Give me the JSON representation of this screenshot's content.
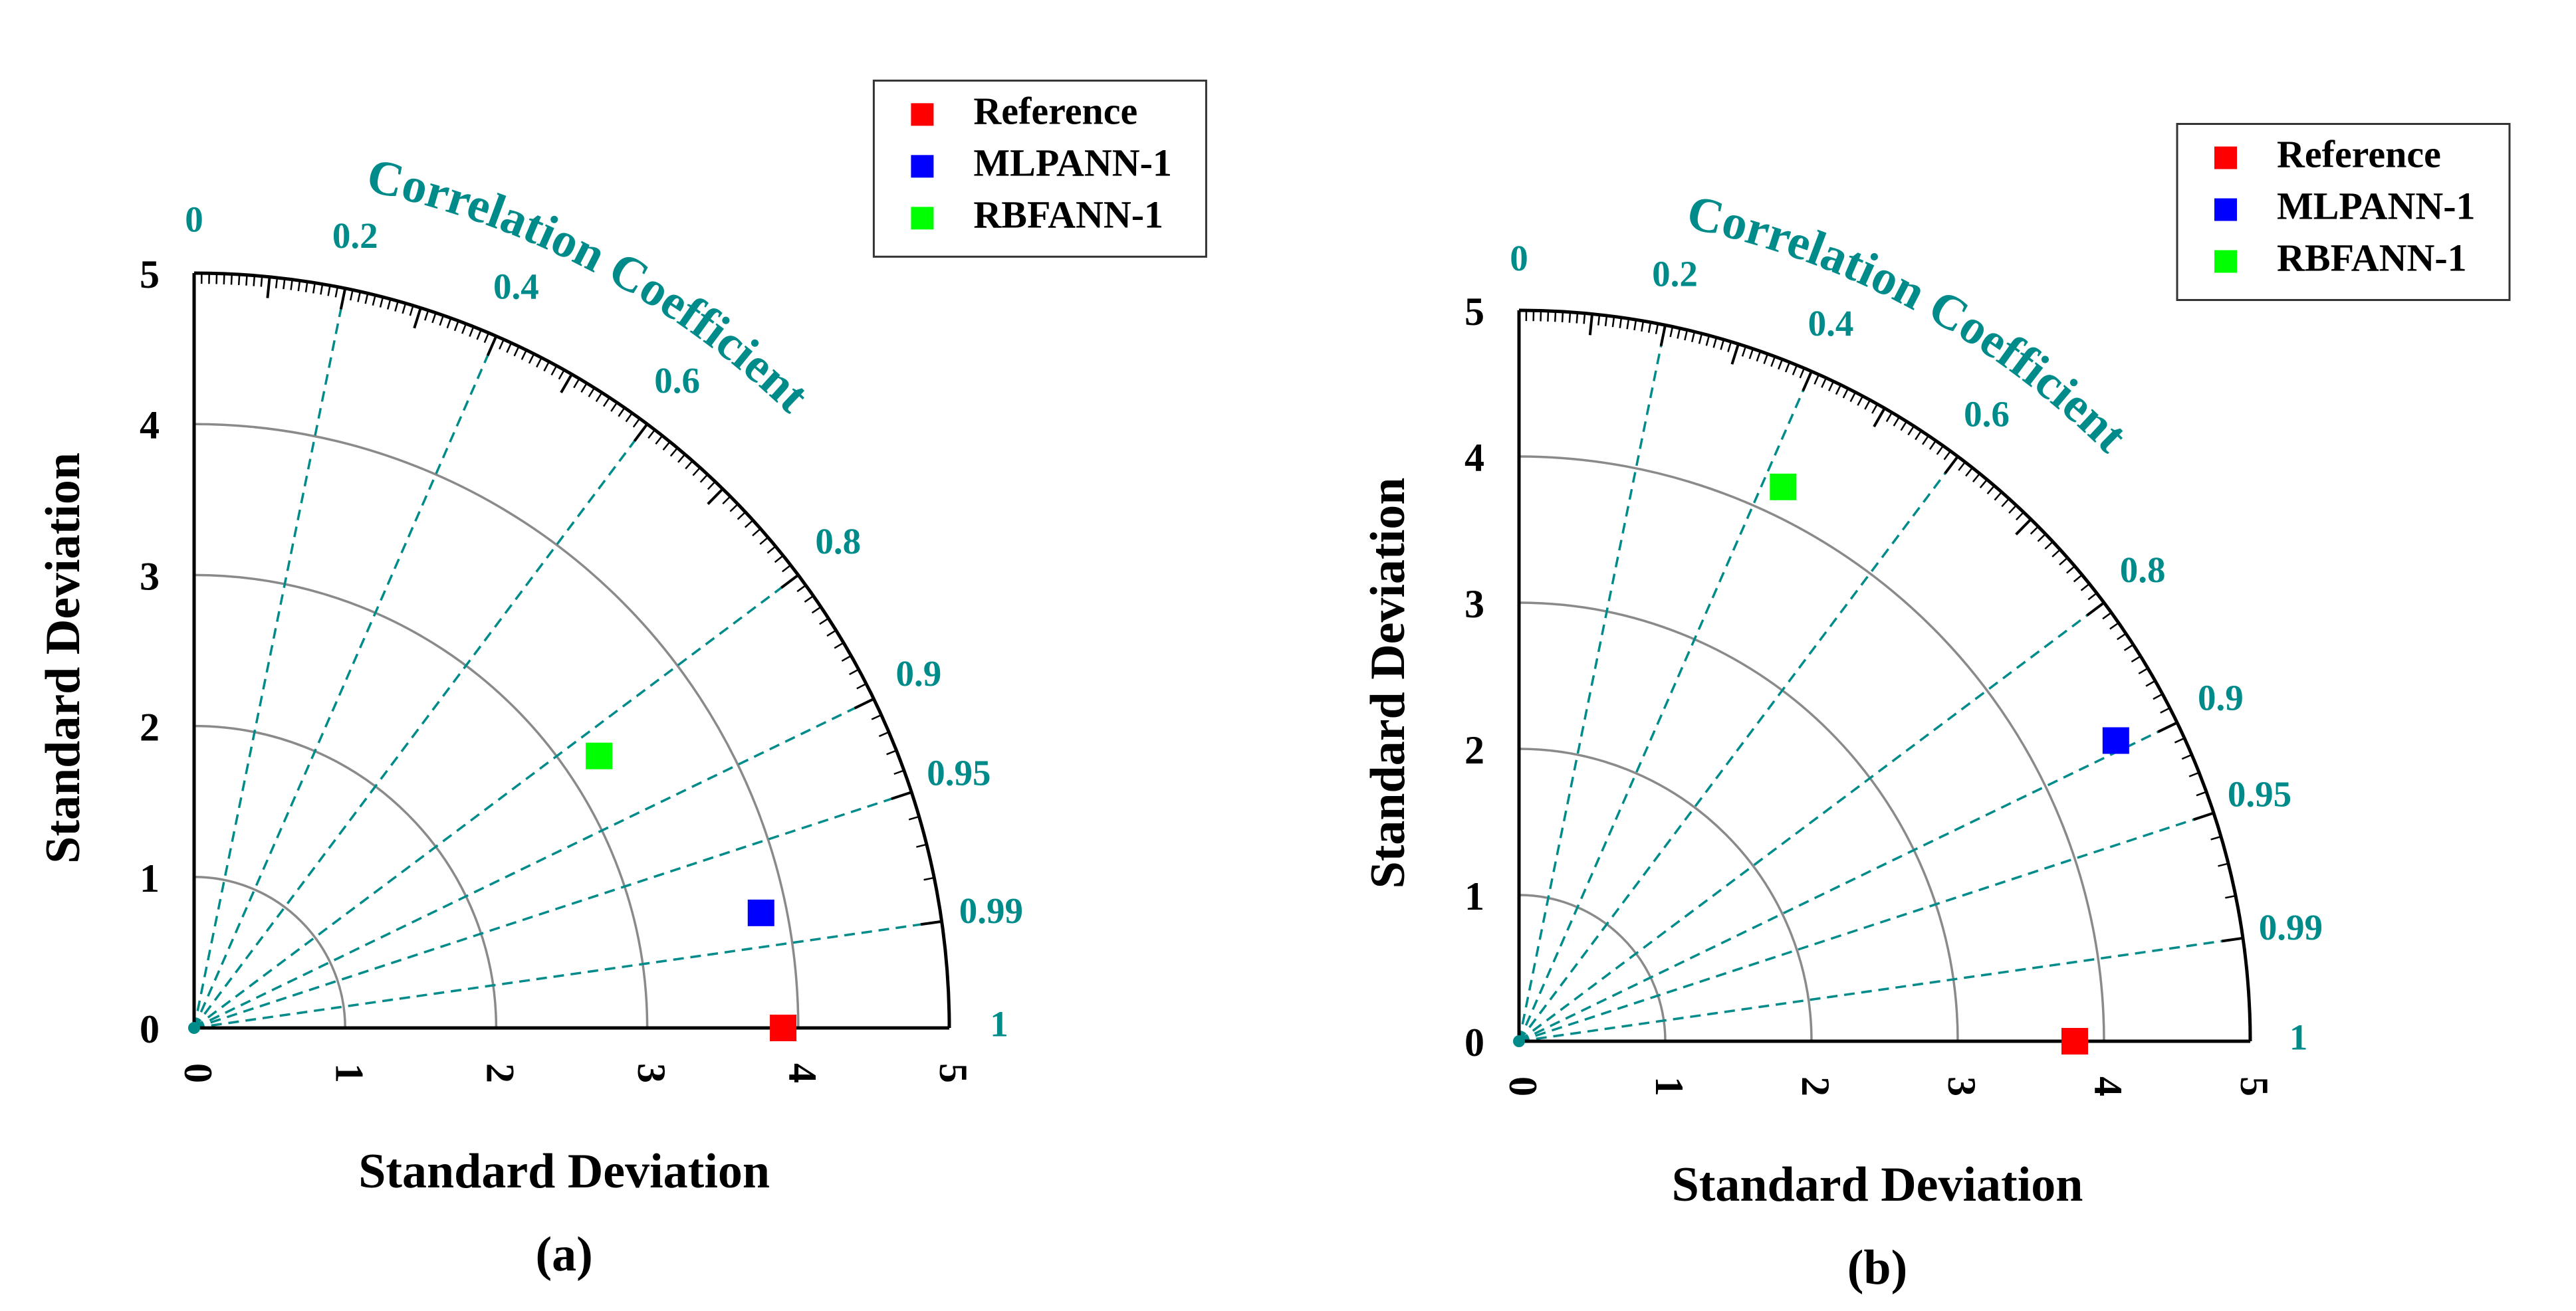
{
  "colors": {
    "correlation": "#008b8b",
    "std_arc": "#8a8a8a",
    "axis": "#000000",
    "reference": "#ff0000",
    "mlpann": "#0000ff",
    "rbfann": "#00ff00"
  },
  "chart_data": [
    {
      "type": "taylor",
      "panel_label": "(a)",
      "xlabel": "Standard Deviation",
      "ylabel": "Standard Deviation",
      "correlation_label": "Correlation Coefficient",
      "std_range": [
        0,
        5
      ],
      "std_ticks": [
        "0",
        "1",
        "2",
        "3",
        "4",
        "5"
      ],
      "std_arcs": [
        1,
        2,
        3,
        4
      ],
      "correlation_ticks": [
        "0",
        "0.2",
        "0.4",
        "0.6",
        "0.8",
        "0.9",
        "0.95",
        "0.99",
        "1"
      ],
      "legend_position": "top-right",
      "legend": [
        "Reference",
        "MLPANN-1",
        "RBFANN-1"
      ],
      "points": [
        {
          "name": "Reference",
          "std": 3.9,
          "corr": 1.0
        },
        {
          "name": "MLPANN-1",
          "std": 3.83,
          "corr": 0.98
        },
        {
          "name": "RBFANN-1",
          "std": 3.23,
          "corr": 0.83
        }
      ]
    },
    {
      "type": "taylor",
      "panel_label": "(b)",
      "xlabel": "Standard Deviation",
      "ylabel": "Standard Deviation",
      "correlation_label": "Correlation Coefficient",
      "std_range": [
        0,
        5
      ],
      "std_ticks": [
        "0",
        "1",
        "2",
        "3",
        "4",
        "5"
      ],
      "std_arcs": [
        1,
        2,
        3,
        4
      ],
      "correlation_ticks": [
        "0",
        "0.2",
        "0.4",
        "0.6",
        "0.8",
        "0.9",
        "0.95",
        "0.99",
        "1"
      ],
      "legend_position": "top-right",
      "legend": [
        "Reference",
        "MLPANN-1",
        "RBFANN-1"
      ],
      "points": [
        {
          "name": "Reference",
          "std": 3.8,
          "corr": 1.0
        },
        {
          "name": "MLPANN-1",
          "std": 4.57,
          "corr": 0.893
        },
        {
          "name": "RBFANN-1",
          "std": 4.2,
          "corr": 0.43
        }
      ]
    }
  ]
}
